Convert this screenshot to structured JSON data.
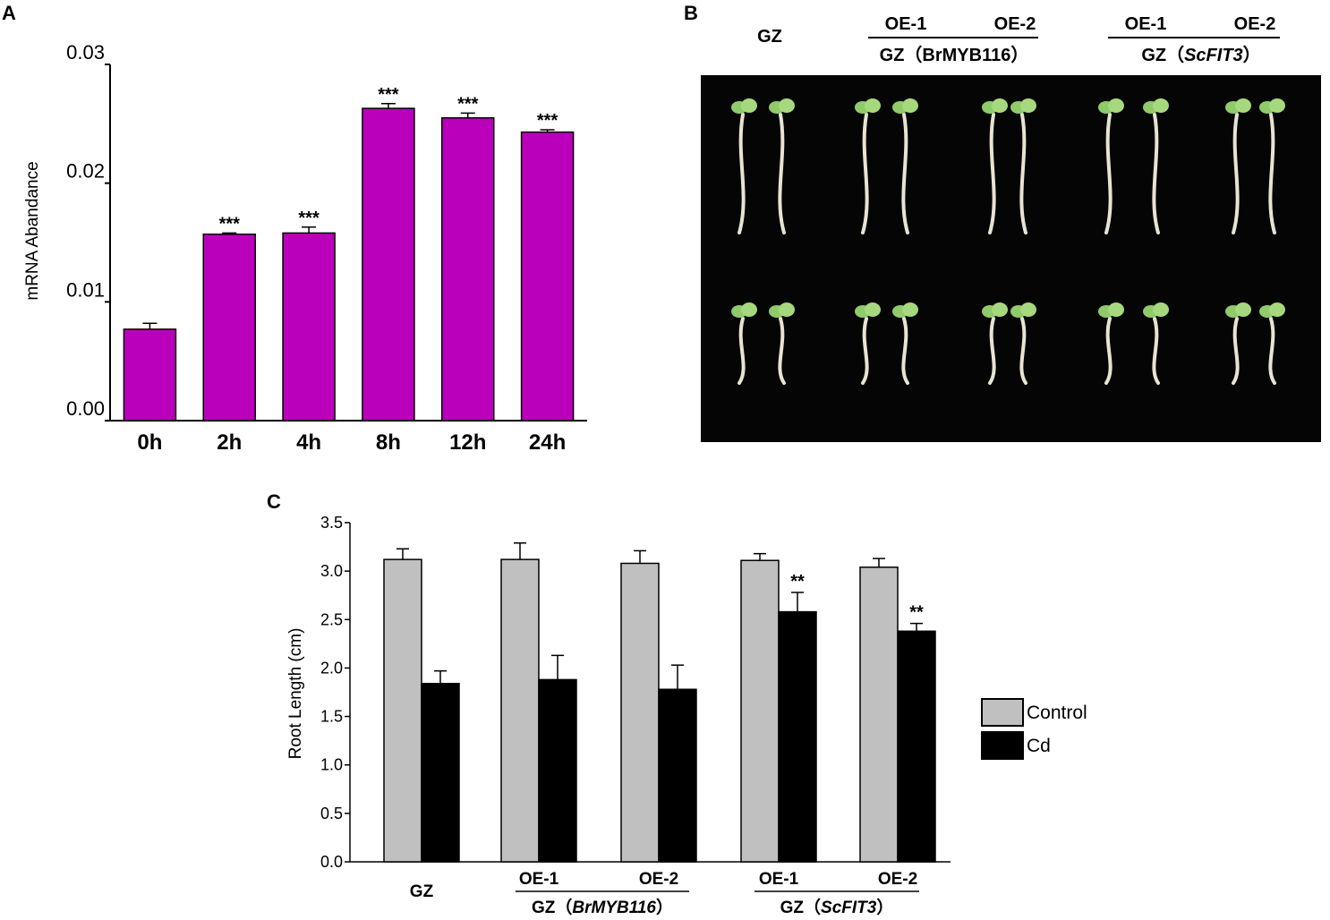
{
  "panels": {
    "a": "A",
    "b": "B",
    "c": "C"
  },
  "chart_data": [
    {
      "panel": "A",
      "type": "bar",
      "ylabel": "mRNA Abandance",
      "ylim": [
        0,
        0.03
      ],
      "yticks": [
        "0.00",
        "0.01",
        "0.02",
        "0.03"
      ],
      "categories": [
        "0h",
        "2h",
        "4h",
        "8h",
        "12h",
        "24h"
      ],
      "values": [
        0.0077,
        0.0157,
        0.0158,
        0.0263,
        0.0255,
        0.0243
      ],
      "errors": [
        0.0005,
        0.0001,
        0.0005,
        0.0004,
        0.0004,
        0.0002
      ],
      "annotations": [
        "",
        "***",
        "***",
        "***",
        "***",
        "***"
      ],
      "color": "#BB00BB"
    },
    {
      "panel": "C",
      "type": "bar",
      "ylabel": "Root Length (cm)",
      "ylim": [
        0,
        3.5
      ],
      "yticks": [
        "0.0",
        "0.5",
        "1.0",
        "1.5",
        "2.0",
        "2.5",
        "3.0",
        "3.5"
      ],
      "categories": [
        "GZ",
        "OE-1",
        "OE-2",
        "OE-1",
        "OE-2"
      ],
      "groups": [
        {
          "label": "GZ（",
          "italic": "BrMYB116",
          "close": "）",
          "members": [
            1,
            2
          ]
        },
        {
          "label": "GZ（",
          "italic": "ScFIT3",
          "close": "）",
          "members": [
            3,
            4
          ]
        }
      ],
      "series": [
        {
          "name": "Control",
          "color": "#C0C0C0",
          "values": [
            3.12,
            3.12,
            3.08,
            3.11,
            3.04
          ],
          "errors": [
            0.11,
            0.17,
            0.13,
            0.07,
            0.09
          ],
          "annotations": [
            "",
            "",
            "",
            "",
            ""
          ]
        },
        {
          "name": "Cd",
          "color": "#000000",
          "values": [
            1.84,
            1.88,
            1.78,
            2.58,
            2.38
          ],
          "errors": [
            0.13,
            0.25,
            0.25,
            0.2,
            0.08
          ],
          "annotations": [
            "",
            "",
            "",
            "**",
            "**"
          ]
        }
      ],
      "legend_position": "right"
    }
  ],
  "photo": {
    "top_labels": {
      "gz": "GZ",
      "oe1a": "OE-1",
      "oe2a": "OE-2",
      "oe1b": "OE-1",
      "oe2b": "OE-2"
    },
    "group1": {
      "text": "GZ（BrMYB116）"
    },
    "group2": {
      "prefix": "GZ（",
      "italic": "ScFIT3",
      "suffix": "）"
    }
  }
}
